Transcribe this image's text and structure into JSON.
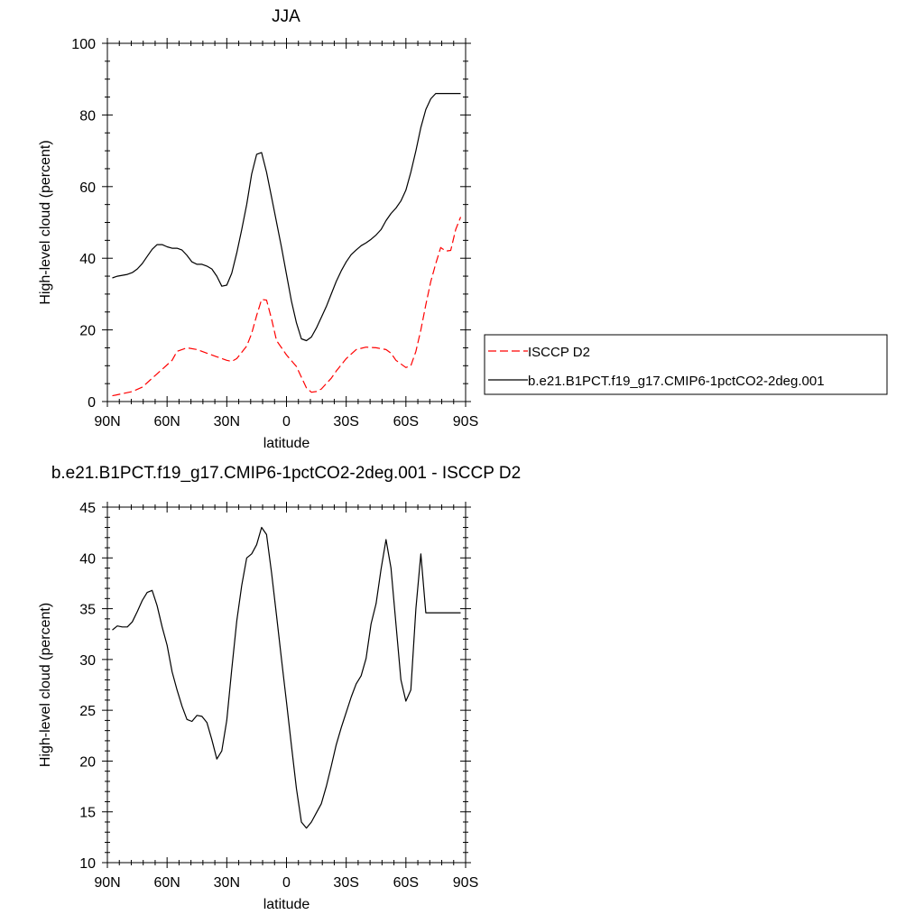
{
  "chart_data": [
    {
      "type": "line",
      "title": "JJA",
      "xlabel": "latitude",
      "ylabel": "High-level cloud (percent)",
      "xlim": [
        90,
        -90
      ],
      "ylim": [
        0,
        100
      ],
      "xticks": [
        90,
        60,
        30,
        0,
        -30,
        -60,
        -90
      ],
      "xtick_labels": [
        "90N",
        "60N",
        "30N",
        "0",
        "30S",
        "60S",
        "90S"
      ],
      "yticks": [
        0,
        20,
        40,
        60,
        80,
        100
      ],
      "ytick_labels": [
        "0",
        "20",
        "40",
        "60",
        "80",
        "100"
      ],
      "grid": false,
      "legend_position": "right",
      "series": [
        {
          "name": "ISCCP D2",
          "color": "#ff0000",
          "dash": "dashed",
          "x": [
            87.5,
            82.5,
            77.5,
            72.5,
            67.5,
            62.5,
            57.5,
            55,
            50,
            45,
            40,
            35,
            30,
            27.5,
            25,
            20,
            17.5,
            15,
            12.5,
            10,
            7.5,
            5,
            2.5,
            0,
            -5,
            -7.5,
            -10,
            -12.5,
            -15,
            -17.5,
            -20,
            -22.5,
            -25,
            -30,
            -35,
            -40,
            -45,
            -50,
            -52.5,
            -55,
            -57.5,
            -60,
            -62.5,
            -65,
            -67.5,
            -70,
            -72.5,
            -75,
            -77.5,
            -80,
            -82.5,
            -85,
            -87.5
          ],
          "y": [
            1.6,
            2.2,
            2.8,
            4,
            6.5,
            9,
            11.5,
            14,
            15,
            14.5,
            13.5,
            12.5,
            11.5,
            11.2,
            12,
            15.5,
            19,
            24,
            28.5,
            28.3,
            23,
            17,
            15,
            13,
            9.8,
            6.8,
            3.8,
            2.6,
            2.8,
            3.5,
            5,
            6.5,
            8.5,
            12,
            14.5,
            15.2,
            15,
            14.5,
            13.5,
            11.5,
            10.5,
            9.5,
            10,
            14,
            20,
            27,
            33.5,
            38.5,
            43,
            42,
            42.2,
            48,
            51.5
          ]
        },
        {
          "name": "b.e21.B1PCT.f19_g17.CMIP6-1pctCO2-2deg.001",
          "color": "#000000",
          "dash": "solid",
          "x": [
            87.5,
            85,
            80,
            77.5,
            75,
            72.5,
            70,
            67.5,
            65,
            62.5,
            60,
            57.5,
            55,
            52.5,
            50,
            47.5,
            45,
            42.5,
            40,
            37.5,
            35,
            32.5,
            30,
            27.5,
            25,
            22.5,
            20,
            17.5,
            15,
            12.5,
            10,
            7.5,
            5,
            2.5,
            0,
            -2.5,
            -5,
            -7.5,
            -10,
            -12.5,
            -15,
            -17.5,
            -20,
            -22.5,
            -25,
            -27.5,
            -30,
            -32.5,
            -35,
            -37.5,
            -40,
            -42.5,
            -45,
            -47.5,
            -50,
            -52.5,
            -55,
            -57.5,
            -60,
            -62.5,
            -65,
            -67.5,
            -70,
            -72.5,
            -75,
            -77.5,
            -80,
            -82.5,
            -85,
            -87.5
          ],
          "y": [
            34.5,
            35,
            35.5,
            36,
            37,
            38.5,
            40.5,
            42.5,
            43.8,
            43.8,
            43.2,
            42.8,
            42.8,
            42.3,
            40.8,
            39,
            38.3,
            38.3,
            37.8,
            37,
            35,
            32.2,
            32.5,
            35.8,
            41.5,
            48,
            55,
            63.5,
            69,
            69.5,
            64,
            57,
            50,
            43,
            35.5,
            28,
            22,
            17.5,
            17,
            18,
            20.5,
            23.5,
            26.5,
            30,
            33.5,
            36.5,
            39,
            41,
            42.3,
            43.5,
            44.3,
            45.3,
            46.5,
            48,
            50.5,
            52.5,
            54,
            56,
            59,
            64,
            70,
            76.5,
            81.5,
            84.5,
            86,
            86,
            86,
            86,
            86,
            86
          ]
        }
      ]
    },
    {
      "type": "line",
      "title": "b.e21.B1PCT.f19_g17.CMIP6-1pctCO2-2deg.001 - ISCCP D2",
      "xlabel": "latitude",
      "ylabel": "High-level cloud (percent)",
      "xlim": [
        90,
        -90
      ],
      "ylim": [
        10,
        45
      ],
      "xticks": [
        90,
        60,
        30,
        0,
        -30,
        -60,
        -90
      ],
      "xtick_labels": [
        "90N",
        "60N",
        "30N",
        "0",
        "30S",
        "60S",
        "90S"
      ],
      "yticks": [
        10,
        15,
        20,
        25,
        30,
        35,
        40,
        45
      ],
      "ytick_labels": [
        "10",
        "15",
        "20",
        "25",
        "30",
        "35",
        "40",
        "45"
      ],
      "grid": false,
      "series": [
        {
          "color": "#000000",
          "dash": "solid",
          "x": [
            87.5,
            85,
            82.5,
            80,
            77.5,
            75,
            72.5,
            70,
            67.5,
            65,
            62.5,
            60,
            57.5,
            55,
            52.5,
            50,
            47.5,
            45,
            42.5,
            40,
            37.5,
            35,
            32.5,
            30,
            27.5,
            25,
            22.5,
            20,
            17.5,
            15,
            12.5,
            10,
            7.5,
            5,
            2.5,
            0,
            -2.5,
            -5,
            -7.5,
            -10,
            -12.5,
            -15,
            -17.5,
            -20,
            -22.5,
            -25,
            -27.5,
            -30,
            -32.5,
            -35,
            -37.5,
            -40,
            -42.5,
            -45,
            -47.5,
            -50,
            -52.5,
            -55,
            -57.5,
            -60,
            -62.5,
            -65,
            -67.5,
            -70,
            -72.5,
            -75,
            -77.5,
            -80,
            -82.5,
            -85,
            -87.5
          ],
          "y": [
            32.9,
            33.3,
            33.2,
            33.2,
            33.7,
            34.7,
            35.8,
            36.6,
            36.8,
            35.3,
            33.2,
            31.4,
            28.8,
            27.0,
            25.4,
            24.1,
            23.9,
            24.5,
            24.4,
            23.8,
            22.1,
            20.2,
            21.0,
            24.0,
            29.0,
            33.8,
            37.3,
            40.0,
            40.4,
            41.3,
            43.0,
            42.3,
            38.5,
            34.3,
            30.0,
            25.8,
            21.5,
            17.3,
            14.0,
            13.4,
            14.0,
            14.9,
            15.8,
            17.5,
            19.5,
            21.6,
            23.3,
            24.8,
            26.3,
            27.6,
            28.4,
            30.1,
            33.5,
            35.5,
            38.9,
            41.8,
            39.0,
            33.5,
            28.0,
            25.9,
            27.0,
            35.0,
            40.4,
            34.6,
            34.6,
            34.6,
            34.6,
            34.6,
            34.6,
            34.6,
            34.6
          ]
        }
      ]
    }
  ]
}
